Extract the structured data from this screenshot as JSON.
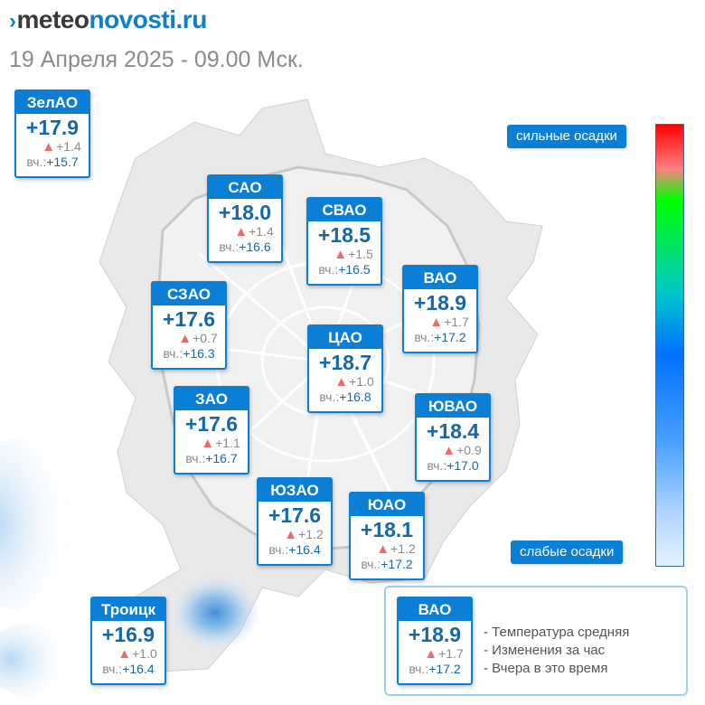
{
  "header": {
    "brand_prefix": "meteo",
    "brand_suffix": "novosti.ru",
    "subtitle": "19 Апреля 2025 - 09.00 Мск."
  },
  "scale": {
    "top_label": "сильные осадки",
    "bottom_label": "слабые осадки"
  },
  "districts": [
    {
      "name": "ЗелАО",
      "temp": "+17.9",
      "delta": "+1.4",
      "yday_label": "вч.:",
      "yday": "+15.7"
    },
    {
      "name": "САО",
      "temp": "+18.0",
      "delta": "+1.4",
      "yday_label": "вч.:",
      "yday": "+16.6"
    },
    {
      "name": "СВАО",
      "temp": "+18.5",
      "delta": "+1.5",
      "yday_label": "вч.:",
      "yday": "+16.5"
    },
    {
      "name": "ВАО",
      "temp": "+18.9",
      "delta": "+1.7",
      "yday_label": "вч.:",
      "yday": "+17.2"
    },
    {
      "name": "СЗАО",
      "temp": "+17.6",
      "delta": "+0.7",
      "yday_label": "вч.:",
      "yday": "+16.3"
    },
    {
      "name": "ЦАО",
      "temp": "+18.7",
      "delta": "+1.0",
      "yday_label": "вч.:",
      "yday": "+16.8"
    },
    {
      "name": "ЗАО",
      "temp": "+17.6",
      "delta": "+1.1",
      "yday_label": "вч.:",
      "yday": "+16.7"
    },
    {
      "name": "ЮВАО",
      "temp": "+18.4",
      "delta": "+0.9",
      "yday_label": "вч.:",
      "yday": "+17.0"
    },
    {
      "name": "ЮЗАО",
      "temp": "+17.6",
      "delta": "+1.2",
      "yday_label": "вч.:",
      "yday": "+16.4"
    },
    {
      "name": "ЮАО",
      "temp": "+18.1",
      "delta": "+1.2",
      "yday_label": "вч.:",
      "yday": "+17.2"
    },
    {
      "name": "Троицк",
      "temp": "+16.9",
      "delta": "+1.0",
      "yday_label": "вч.:",
      "yday": "+16.4"
    }
  ],
  "legend": {
    "sample": {
      "name": "ВАО",
      "temp": "+18.9",
      "delta": "+1.7",
      "yday_label": "вч.:",
      "yday": "+17.2"
    },
    "items": [
      "- Температура средняя",
      "- Изменения за час",
      "- Вчера в это время"
    ]
  },
  "colors": {
    "accent": "#0b7fd6",
    "value": "#1568a8",
    "increase_triangle": "#f06a6a"
  }
}
